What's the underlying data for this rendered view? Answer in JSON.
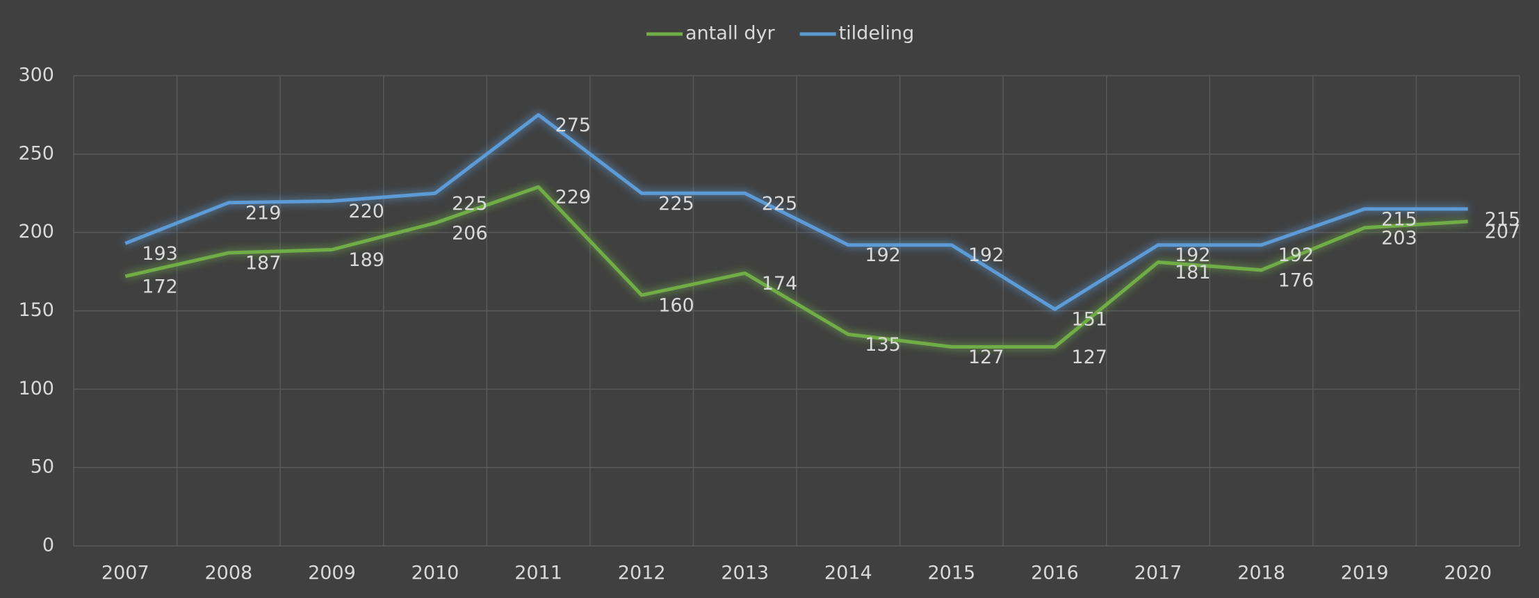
{
  "chart_data": {
    "type": "line",
    "categories": [
      "2007",
      "2008",
      "2009",
      "2010",
      "2011",
      "2012",
      "2013",
      "2014",
      "2015",
      "2016",
      "2017",
      "2018",
      "2019",
      "2020"
    ],
    "series": [
      {
        "name": "antall dyr",
        "color": "#70ad47",
        "values": [
          172,
          187,
          189,
          206,
          229,
          160,
          174,
          135,
          127,
          127,
          181,
          176,
          203,
          207
        ]
      },
      {
        "name": "tildeling",
        "color": "#5b9bd5",
        "values": [
          193,
          219,
          220,
          225,
          275,
          225,
          225,
          192,
          192,
          151,
          192,
          192,
          215,
          215
        ]
      }
    ],
    "ylim": [
      0,
      300
    ],
    "yticks": [
      0,
      50,
      100,
      150,
      200,
      250,
      300
    ],
    "grid": true,
    "legend": "top",
    "data_labels": true
  }
}
